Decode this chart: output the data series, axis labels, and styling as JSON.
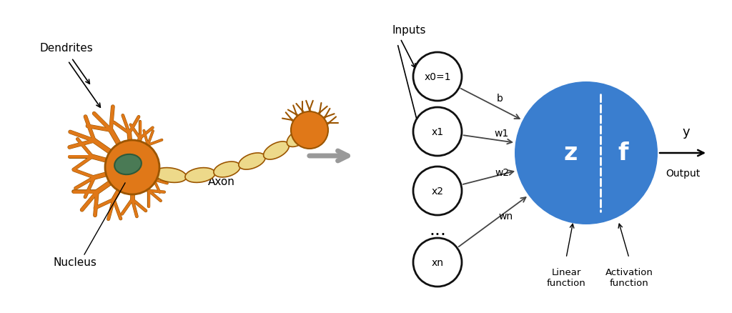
{
  "bg_color": "#ffffff",
  "arrow_color": "#444444",
  "gray_arrow_color": "#aaaaaa",
  "node_edge_color": "#111111",
  "node_fill_color": "#ffffff",
  "big_circle_color": "#3a7ecf",
  "dashed_line_color": "#ffffff",
  "orange": "#E07818",
  "orange_dark": "#9B5500",
  "yellow_light": "#EDD98A",
  "green_nucleus": "#4a7a55",
  "green_nucleus_dark": "#2d5a3a",
  "input_labels": [
    "x0=1",
    "x1",
    "x2",
    "xn"
  ],
  "weight_labels": [
    "b",
    "w1",
    "w2",
    "wn"
  ],
  "z_label": "z",
  "f_label": "f",
  "y_label": "y",
  "output_label": "Output",
  "inputs_label": "Inputs",
  "linear_function_label": "Linear\nfunction",
  "activation_function_label": "Activation\nfunction",
  "axon_label": "Axon",
  "dendrites_label": "Dendrites",
  "nucleus_label": "Nucleus",
  "dots_label": "...",
  "figsize": [
    10.24,
    4.39
  ],
  "dpi": 100
}
